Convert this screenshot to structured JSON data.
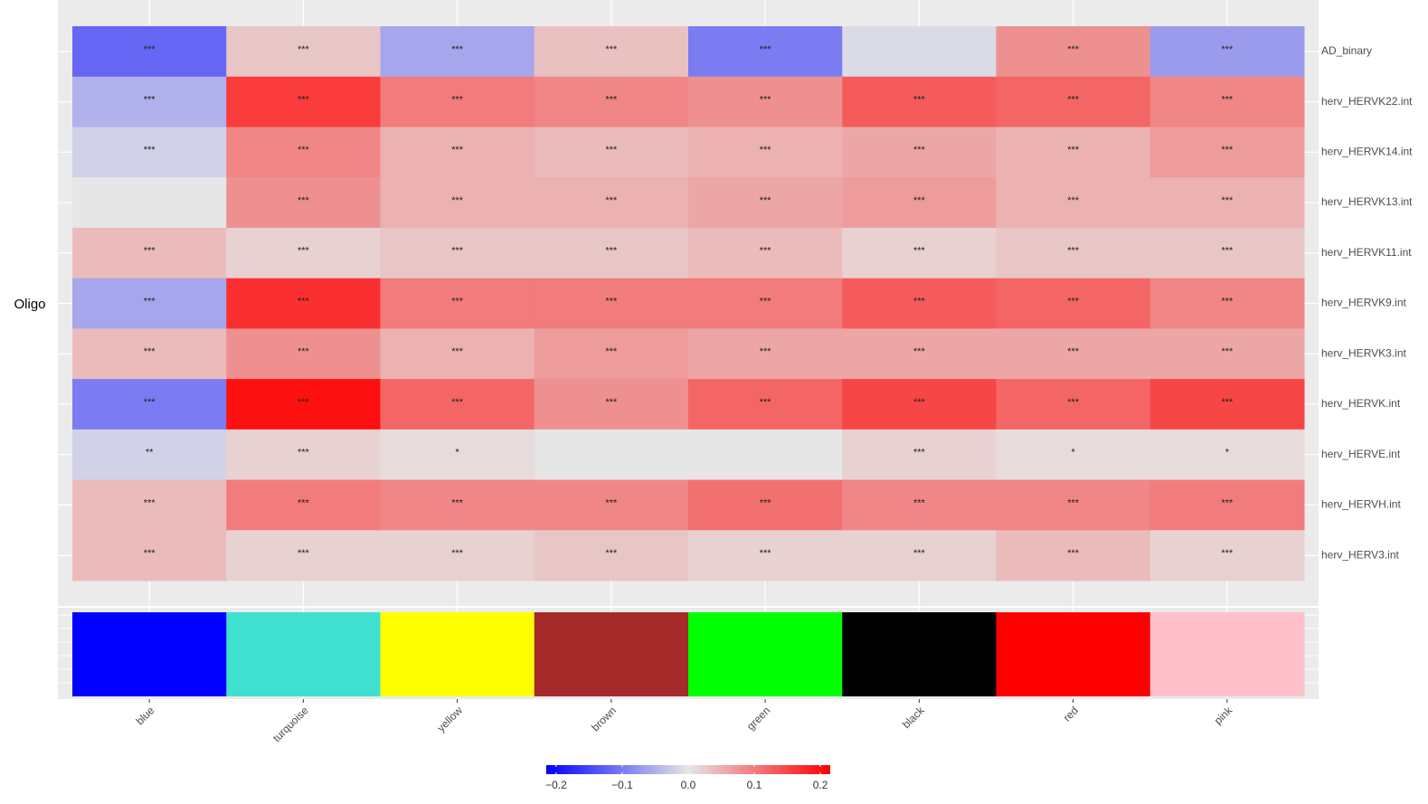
{
  "chart_data": {
    "type": "heatmap",
    "row_group_label": "Oligo",
    "rows": [
      "AD_binary",
      "herv_HERVK22.int",
      "herv_HERVK14.int",
      "herv_HERVK13.int",
      "herv_HERVK11.int",
      "herv_HERVK9.int",
      "herv_HERVK3.int",
      "herv_HERVK.int",
      "herv_HERVE.int",
      "herv_HERVH.int",
      "herv_HERV3.int"
    ],
    "categories": [
      "blue",
      "turquoise",
      "yellow",
      "brown",
      "green",
      "black",
      "red",
      "pink"
    ],
    "category_colors": [
      "#0000ff",
      "#40e0d0",
      "#ffff00",
      "#a52a2a",
      "#00ff00",
      "#000000",
      "#ff0000",
      "#ffc0cb"
    ],
    "values": [
      [
        -0.12,
        0.03,
        -0.06,
        0.035,
        -0.1,
        -0.01,
        0.08,
        -0.07
      ],
      [
        -0.05,
        0.16,
        0.1,
        0.09,
        0.08,
        0.13,
        0.12,
        0.09
      ],
      [
        -0.02,
        0.09,
        0.05,
        0.04,
        0.05,
        0.06,
        0.05,
        0.07
      ],
      [
        0.0,
        0.08,
        0.05,
        0.05,
        0.06,
        0.07,
        0.05,
        0.05
      ],
      [
        0.04,
        0.02,
        0.03,
        0.03,
        0.04,
        0.02,
        0.03,
        0.03
      ],
      [
        -0.06,
        0.17,
        0.1,
        0.1,
        0.1,
        0.13,
        0.12,
        0.09
      ],
      [
        0.04,
        0.08,
        0.05,
        0.07,
        0.06,
        0.06,
        0.06,
        0.06
      ],
      [
        -0.1,
        0.2,
        0.12,
        0.08,
        0.12,
        0.15,
        0.12,
        0.15
      ],
      [
        -0.02,
        0.02,
        0.01,
        0.0,
        0.0,
        0.02,
        0.01,
        0.01
      ],
      [
        0.04,
        0.1,
        0.09,
        0.09,
        0.11,
        0.09,
        0.09,
        0.1
      ],
      [
        0.04,
        0.02,
        0.02,
        0.03,
        0.02,
        0.02,
        0.04,
        0.02
      ]
    ],
    "annotations": [
      [
        "***",
        "***",
        "***",
        "***",
        "***",
        null,
        "***",
        "***"
      ],
      [
        "***",
        "***",
        "***",
        "***",
        "***",
        "***",
        "***",
        "***"
      ],
      [
        "***",
        "***",
        "***",
        "***",
        "***",
        "***",
        "***",
        "***"
      ],
      [
        null,
        "***",
        "***",
        "***",
        "***",
        "***",
        "***",
        "***"
      ],
      [
        "***",
        "***",
        "***",
        "***",
        "***",
        "***",
        "***",
        "***"
      ],
      [
        "***",
        "***",
        "***",
        "***",
        "***",
        "***",
        "***",
        "***"
      ],
      [
        "***",
        "***",
        "***",
        "***",
        "***",
        "***",
        "***",
        "***"
      ],
      [
        "***",
        "***",
        "***",
        "***",
        "***",
        "***",
        "***",
        "***"
      ],
      [
        "**",
        "***",
        "*",
        null,
        null,
        "***",
        "*",
        "*"
      ],
      [
        "***",
        "***",
        "***",
        "***",
        "***",
        "***",
        "***",
        "***"
      ],
      [
        "***",
        "***",
        "***",
        "***",
        "***",
        "***",
        "***",
        "***"
      ]
    ],
    "colors": [
      "#0000ff",
      "#e6e6e6",
      "#ff0000"
    ],
    "clim": [
      -0.215,
      0.215
    ],
    "cticks": [
      {
        "value": -0.2,
        "label": "−0.2"
      },
      {
        "value": -0.1,
        "label": "−0.1"
      },
      {
        "value": 0,
        "label": "0.0"
      },
      0.1,
      0.2
    ]
  }
}
